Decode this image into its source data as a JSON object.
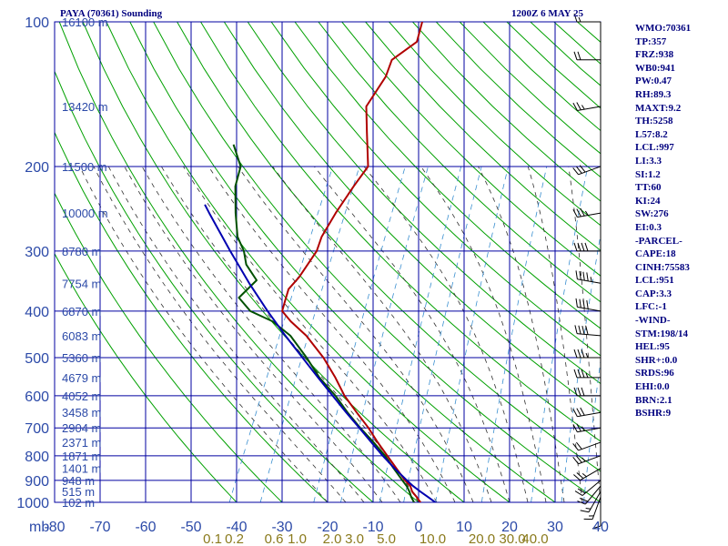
{
  "station_title": "PAYA (70361) Sounding",
  "timestamp": "1200Z  6 MAY 25",
  "indices": [
    "WMO:70361",
    "TP:357",
    "FRZ:938",
    "WB0:941",
    "PW:0.47",
    "RH:89.3",
    "MAXT:9.2",
    "TH:5258",
    "L57:8.2",
    "LCL:997",
    "LI:3.3",
    "SI:1.2",
    "TT:60",
    "KI:24",
    "SW:276",
    "EI:0.3",
    "-PARCEL-",
    "CAPE:18",
    "CINH:75583",
    "LCL:951",
    "CAP:3.3",
    "LFC:-1",
    "-WIND-",
    "STM:198/14",
    "HEL:95",
    "SHR+:0.0",
    "SRDS:96",
    "EHI:0.0",
    "BRN:2.1",
    "BSHR:9"
  ],
  "colors": {
    "grid": "#0000a0",
    "dry_adiabat": "#00a000",
    "moist_adiabat": "#303030",
    "mixing_ratio": "#3a8fd0",
    "temperature": "#b00000",
    "dewpoint": "#005000",
    "parcel": "#0000b0",
    "labels": "#2c4aa8",
    "mixing_labels": "#8a7a1c"
  },
  "chart_data": {
    "type": "skew-t",
    "title": "PAYA (70361) Sounding",
    "xlabel": "",
    "ylabel": "mb",
    "pressure_levels": [
      100,
      200,
      300,
      400,
      500,
      600,
      700,
      800,
      900,
      1000
    ],
    "temperature_ticks": [
      -80,
      -70,
      -60,
      -50,
      -40,
      -30,
      -20,
      -10,
      0,
      10,
      20,
      30,
      40
    ],
    "xlim": [
      -80,
      40
    ],
    "ylim": [
      1000,
      100
    ],
    "height_labels": [
      {
        "p": 100,
        "h": "16100 m"
      },
      {
        "p": 150,
        "h": "13420 m"
      },
      {
        "p": 200,
        "h": "11500 m"
      },
      {
        "p": 250,
        "h": "10000 m"
      },
      {
        "p": 300,
        "h": "8780 m"
      },
      {
        "p": 350,
        "h": "7754 m"
      },
      {
        "p": 400,
        "h": "6870 m"
      },
      {
        "p": 450,
        "h": "6083 m"
      },
      {
        "p": 500,
        "h": "5360 m"
      },
      {
        "p": 550,
        "h": "4679 m"
      },
      {
        "p": 600,
        "h": "4052 m"
      },
      {
        "p": 650,
        "h": "3458 m"
      },
      {
        "p": 700,
        "h": "2904 m"
      },
      {
        "p": 750,
        "h": "2371 m"
      },
      {
        "p": 800,
        "h": "1871 m"
      },
      {
        "p": 850,
        "h": "1401 m"
      },
      {
        "p": 900,
        "h": "948 m"
      },
      {
        "p": 950,
        "h": "515 m"
      },
      {
        "p": 1000,
        "h": "102 m"
      }
    ],
    "mixing_ratio_labels": [
      {
        "w": "0.1",
        "t": -45.3
      },
      {
        "w": "0.2",
        "t": -40.5
      },
      {
        "w": "0.6",
        "t": -31.8
      },
      {
        "w": "1.0",
        "t": -26.7
      },
      {
        "w": "2.0",
        "t": -19.0
      },
      {
        "w": "3.0",
        "t": -14.1
      },
      {
        "w": "5.0",
        "t": -7.1
      },
      {
        "w": "10.0",
        "t": 3.1
      },
      {
        "w": "20.0",
        "t": 13.9
      },
      {
        "w": "30.0",
        "t": 20.6
      },
      {
        "w": "40.0",
        "t": 25.6
      }
    ],
    "series": [
      {
        "key": "temperature",
        "points": [
          [
            1006,
            0.7
          ],
          [
            1000,
            0.4
          ],
          [
            975,
            -1.0
          ],
          [
            950,
            -2.6
          ],
          [
            925,
            -3.6
          ],
          [
            900,
            -5.4
          ],
          [
            850,
            -8.6
          ],
          [
            800,
            -12.0
          ],
          [
            750,
            -15.6
          ],
          [
            700,
            -19.2
          ],
          [
            650,
            -23.5
          ],
          [
            600,
            -28.0
          ],
          [
            550,
            -32.0
          ],
          [
            500,
            -36.8
          ],
          [
            450,
            -43.0
          ],
          [
            420,
            -48.0
          ],
          [
            400,
            -51.0
          ],
          [
            380,
            -51.5
          ],
          [
            360,
            -52.0
          ],
          [
            340,
            -51.0
          ],
          [
            300,
            -50.0
          ],
          [
            280,
            -50.5
          ],
          [
            250,
            -50.0
          ],
          [
            220,
            -49.0
          ],
          [
            200,
            -48.0
          ],
          [
            170,
            -52.0
          ],
          [
            150,
            -55.0
          ],
          [
            130,
            -54.0
          ],
          [
            120,
            -54.5
          ],
          [
            110,
            -51.0
          ],
          [
            100,
            -52.0
          ]
        ]
      },
      {
        "key": "dewpoint",
        "points": [
          [
            1006,
            -0.6
          ],
          [
            1000,
            -1.0
          ],
          [
            975,
            -2.2
          ],
          [
            950,
            -3.2
          ],
          [
            925,
            -4.4
          ],
          [
            900,
            -6.0
          ],
          [
            850,
            -9.2
          ],
          [
            800,
            -12.5
          ],
          [
            750,
            -16.5
          ],
          [
            700,
            -21.0
          ],
          [
            650,
            -25.5
          ],
          [
            600,
            -30.0
          ],
          [
            550,
            -35.5
          ],
          [
            500,
            -40.5
          ],
          [
            450,
            -46.5
          ],
          [
            420,
            -52.0
          ],
          [
            400,
            -58.0
          ],
          [
            375,
            -62.0
          ],
          [
            345,
            -60.0
          ],
          [
            320,
            -64.0
          ],
          [
            300,
            -66.0
          ],
          [
            280,
            -69.0
          ],
          [
            250,
            -72.0
          ],
          [
            220,
            -75.0
          ],
          [
            200,
            -76.0
          ],
          [
            180,
            -80.0
          ]
        ]
      },
      {
        "key": "parcel",
        "points": [
          [
            1006,
            4.2
          ],
          [
            975,
            1.5
          ],
          [
            950,
            -0.8
          ],
          [
            925,
            -3.0
          ],
          [
            900,
            -5.0
          ],
          [
            850,
            -9.0
          ],
          [
            800,
            -13.0
          ],
          [
            750,
            -17.0
          ],
          [
            700,
            -21.2
          ],
          [
            650,
            -25.8
          ],
          [
            600,
            -30.6
          ],
          [
            550,
            -35.8
          ],
          [
            500,
            -41.4
          ],
          [
            450,
            -47.6
          ],
          [
            400,
            -54.2
          ],
          [
            350,
            -61.3
          ],
          [
            300,
            -69.0
          ],
          [
            250,
            -77.8
          ],
          [
            240,
            -79.7
          ]
        ]
      }
    ],
    "wind_barbs": [
      {
        "p": 1000,
        "dir": 180,
        "kt": 10
      },
      {
        "p": 975,
        "dir": 200,
        "kt": 15
      },
      {
        "p": 950,
        "dir": 210,
        "kt": 15
      },
      {
        "p": 925,
        "dir": 220,
        "kt": 20
      },
      {
        "p": 900,
        "dir": 230,
        "kt": 20
      },
      {
        "p": 850,
        "dir": 240,
        "kt": 25
      },
      {
        "p": 800,
        "dir": 250,
        "kt": 25
      },
      {
        "p": 750,
        "dir": 250,
        "kt": 20
      },
      {
        "p": 700,
        "dir": 260,
        "kt": 25
      },
      {
        "p": 650,
        "dir": 260,
        "kt": 30
      },
      {
        "p": 600,
        "dir": 270,
        "kt": 30
      },
      {
        "p": 550,
        "dir": 270,
        "kt": 35
      },
      {
        "p": 500,
        "dir": 270,
        "kt": 35
      },
      {
        "p": 450,
        "dir": 275,
        "kt": 40
      },
      {
        "p": 400,
        "dir": 280,
        "kt": 40
      },
      {
        "p": 350,
        "dir": 280,
        "kt": 45
      },
      {
        "p": 300,
        "dir": 270,
        "kt": 40
      },
      {
        "p": 250,
        "dir": 260,
        "kt": 35
      },
      {
        "p": 200,
        "dir": 250,
        "kt": 30
      },
      {
        "p": 150,
        "dir": 260,
        "kt": 25
      },
      {
        "p": 120,
        "dir": 270,
        "kt": 20
      },
      {
        "p": 100,
        "dir": 270,
        "kt": 15
      }
    ]
  }
}
